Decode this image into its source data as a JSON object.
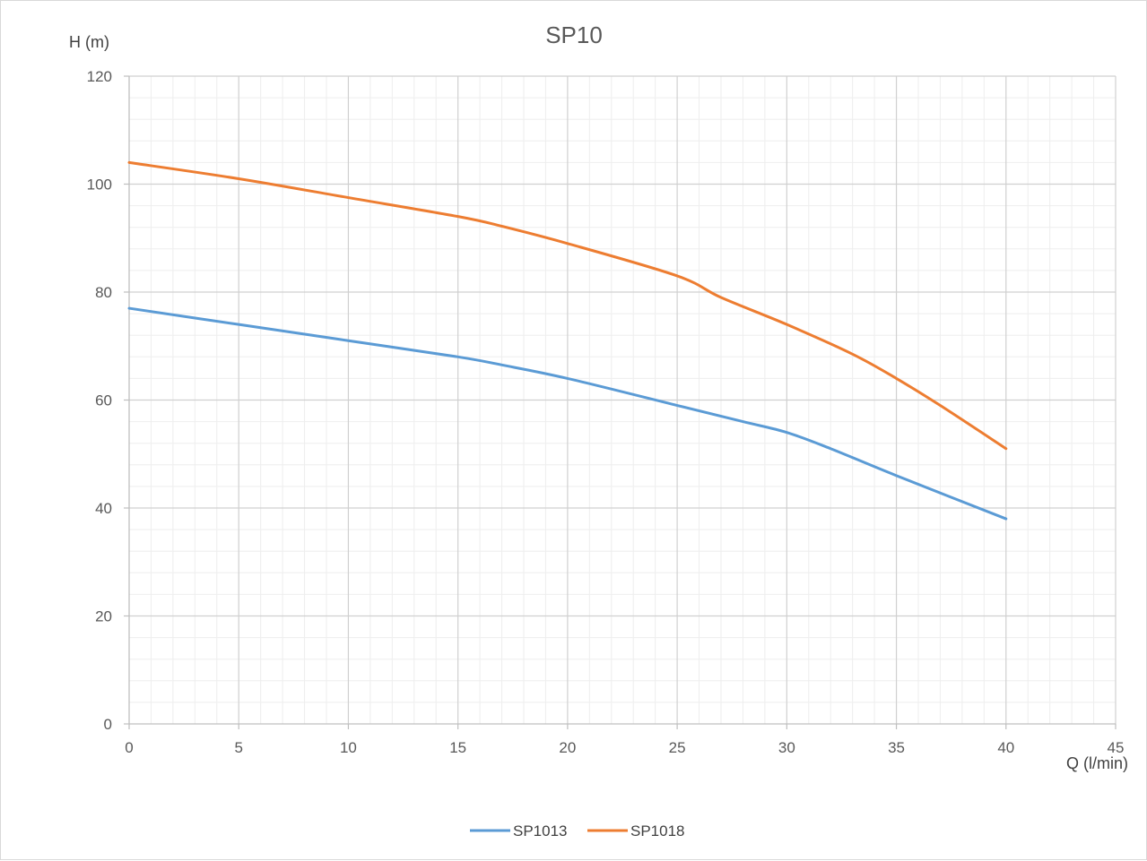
{
  "chart_data": {
    "type": "line",
    "title": "SP10",
    "xlabel": "Q (l/min)",
    "ylabel": "H (m)",
    "xlim": [
      0,
      45
    ],
    "ylim": [
      0,
      120
    ],
    "x_major_step": 5,
    "x_minor_step": 1,
    "y_major_step": 20,
    "y_minor_step": 4,
    "grid": true,
    "legend_position": "bottom",
    "series": [
      {
        "name": "SP1013",
        "color": "#5b9bd5",
        "points": [
          [
            0,
            77
          ],
          [
            5,
            74
          ],
          [
            10,
            71
          ],
          [
            15,
            68
          ],
          [
            17,
            66.5
          ],
          [
            20,
            64
          ],
          [
            25,
            59
          ],
          [
            28,
            56
          ],
          [
            30,
            54
          ],
          [
            32,
            51
          ],
          [
            35,
            46
          ],
          [
            40,
            38
          ]
        ]
      },
      {
        "name": "SP1018",
        "color": "#ed7d31",
        "points": [
          [
            0,
            104
          ],
          [
            5,
            101
          ],
          [
            10,
            97.5
          ],
          [
            15,
            94
          ],
          [
            17,
            92.2
          ],
          [
            20,
            89
          ],
          [
            25,
            83
          ],
          [
            27,
            79
          ],
          [
            30,
            74
          ],
          [
            33,
            68.5
          ],
          [
            35,
            64
          ],
          [
            37,
            59
          ],
          [
            40,
            51
          ]
        ]
      }
    ]
  }
}
